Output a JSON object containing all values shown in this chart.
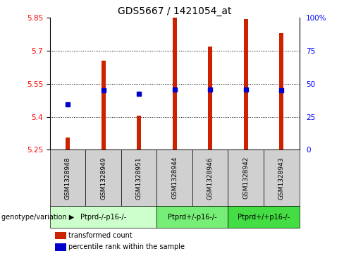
{
  "title": "GDS5667 / 1421054_at",
  "samples": [
    "GSM1328948",
    "GSM1328949",
    "GSM1328951",
    "GSM1328944",
    "GSM1328946",
    "GSM1328942",
    "GSM1328943"
  ],
  "bar_bottoms": [
    5.25,
    5.25,
    5.25,
    5.25,
    5.25,
    5.25,
    5.25
  ],
  "bar_tops": [
    5.305,
    5.655,
    5.405,
    5.855,
    5.72,
    5.845,
    5.78
  ],
  "percentile_values": [
    5.455,
    5.52,
    5.505,
    5.525,
    5.525,
    5.525,
    5.52
  ],
  "ylim_left": [
    5.25,
    5.85
  ],
  "ylim_right": [
    0,
    100
  ],
  "yticks_left": [
    5.25,
    5.4,
    5.55,
    5.7,
    5.85
  ],
  "yticks_right": [
    0,
    25,
    50,
    75,
    100
  ],
  "ytick_labels_left": [
    "5.25",
    "5.4",
    "5.55",
    "5.7",
    "5.85"
  ],
  "ytick_labels_right": [
    "0",
    "25",
    "50",
    "75",
    "100%"
  ],
  "bar_color": "#cc2200",
  "percentile_color": "#0000cc",
  "genotype_groups": [
    {
      "label": "Ptprd-/-p16-/-",
      "indices": [
        0,
        1,
        2
      ],
      "color": "#ccffcc"
    },
    {
      "label": "Ptprd+/-p16-/-",
      "indices": [
        3,
        4
      ],
      "color": "#77ee77"
    },
    {
      "label": "Ptprd+/+p16-/-",
      "indices": [
        5,
        6
      ],
      "color": "#44dd44"
    }
  ],
  "legend_bar_label": "transformed count",
  "legend_percentile_label": "percentile rank within the sample",
  "genotype_label": "genotype/variation"
}
